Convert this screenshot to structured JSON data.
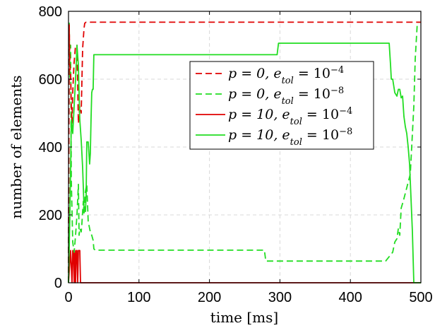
{
  "chart_data": {
    "type": "line",
    "title": "",
    "xlabel": "time [ms]",
    "ylabel": "number of elements",
    "xlim": [
      0,
      500
    ],
    "ylim": [
      0,
      800
    ],
    "xticks": [
      0,
      100,
      200,
      300,
      400,
      500
    ],
    "yticks": [
      0,
      200,
      400,
      600,
      800
    ],
    "grid": true,
    "legend_position": "upper-right",
    "series": [
      {
        "name": "p = 0, e_tol = 10^-4",
        "color": "#e00000",
        "dash": "dashed",
        "x": [
          0,
          1,
          2,
          3,
          4,
          5,
          6,
          7,
          8,
          10,
          12,
          14,
          16,
          18,
          20,
          22,
          23,
          25,
          30,
          100,
          200,
          300,
          400,
          490,
          500
        ],
        "y": [
          0,
          760,
          640,
          610,
          520,
          470,
          560,
          610,
          650,
          700,
          700,
          470,
          520,
          500,
          690,
          750,
          765,
          768,
          768,
          768,
          768,
          768,
          768,
          768,
          768
        ]
      },
      {
        "name": "p = 0, e_tol = 10^-8",
        "color": "#22dd22",
        "dash": "dashed",
        "x": [
          0,
          1,
          2,
          3,
          4,
          6,
          8,
          10,
          12,
          14,
          15,
          16,
          18,
          19,
          20,
          21,
          22,
          24,
          26,
          28,
          30,
          31,
          33,
          35,
          36,
          38,
          40,
          60,
          150,
          250,
          278,
          280,
          300,
          380,
          450,
          460,
          463,
          466,
          468,
          470,
          472,
          475,
          480,
          485,
          488,
          490,
          492,
          495,
          500
        ],
        "y": [
          0,
          765,
          600,
          700,
          300,
          120,
          90,
          140,
          200,
          290,
          140,
          160,
          150,
          175,
          210,
          240,
          200,
          270,
          290,
          180,
          160,
          150,
          140,
          125,
          100,
          96,
          96,
          96,
          96,
          96,
          96,
          64,
          64,
          64,
          64,
          90,
          120,
          130,
          160,
          140,
          220,
          240,
          280,
          320,
          440,
          520,
          660,
          768,
          768
        ]
      },
      {
        "name": "p = 10, e_tol = 10^-4",
        "color": "#e00000",
        "dash": "solid",
        "x": [
          0,
          3,
          5,
          6,
          7,
          8,
          9,
          10,
          11,
          12,
          13,
          14,
          15,
          16,
          17,
          18,
          50,
          200,
          400,
          500
        ],
        "y": [
          0,
          95,
          0,
          95,
          95,
          0,
          95,
          0,
          95,
          95,
          0,
          95,
          95,
          95,
          0,
          0,
          0,
          0,
          0,
          0
        ]
      },
      {
        "name": "p = 10, e_tol = 10^-8",
        "color": "#22dd22",
        "dash": "solid",
        "x": [
          0,
          2,
          4,
          6,
          8,
          10,
          12,
          14,
          16,
          18,
          20,
          22,
          24,
          25,
          26,
          28,
          30,
          31,
          32,
          33,
          34,
          35,
          36,
          40,
          100,
          200,
          296,
          298,
          300,
          350,
          400,
          455,
          457,
          458,
          460,
          463,
          466,
          468,
          470,
          472,
          474,
          476,
          478,
          480,
          482,
          484,
          486,
          488,
          490,
          492,
          495,
          500
        ],
        "y": [
          0,
          200,
          480,
          440,
          520,
          600,
          700,
          640,
          480,
          420,
          340,
          220,
          210,
          260,
          415,
          415,
          350,
          380,
          480,
          560,
          570,
          570,
          672,
          672,
          672,
          672,
          672,
          706,
          706,
          706,
          706,
          706,
          640,
          600,
          600,
          560,
          550,
          570,
          570,
          545,
          550,
          490,
          460,
          440,
          400,
          350,
          250,
          150,
          0,
          0,
          0,
          0
        ]
      }
    ]
  },
  "legend": {
    "entries": [
      {
        "pre": "p = 0, e",
        "sub": "tol",
        "mid": " = 10",
        "sup": "−4"
      },
      {
        "pre": "p = 0, e",
        "sub": "tol",
        "mid": " = 10",
        "sup": "−8"
      },
      {
        "pre": "p = 10, e",
        "sub": "tol",
        "mid": " = 10",
        "sup": "−4"
      },
      {
        "pre": "p = 10, e",
        "sub": "tol",
        "mid": " = 10",
        "sup": "−8"
      }
    ]
  }
}
